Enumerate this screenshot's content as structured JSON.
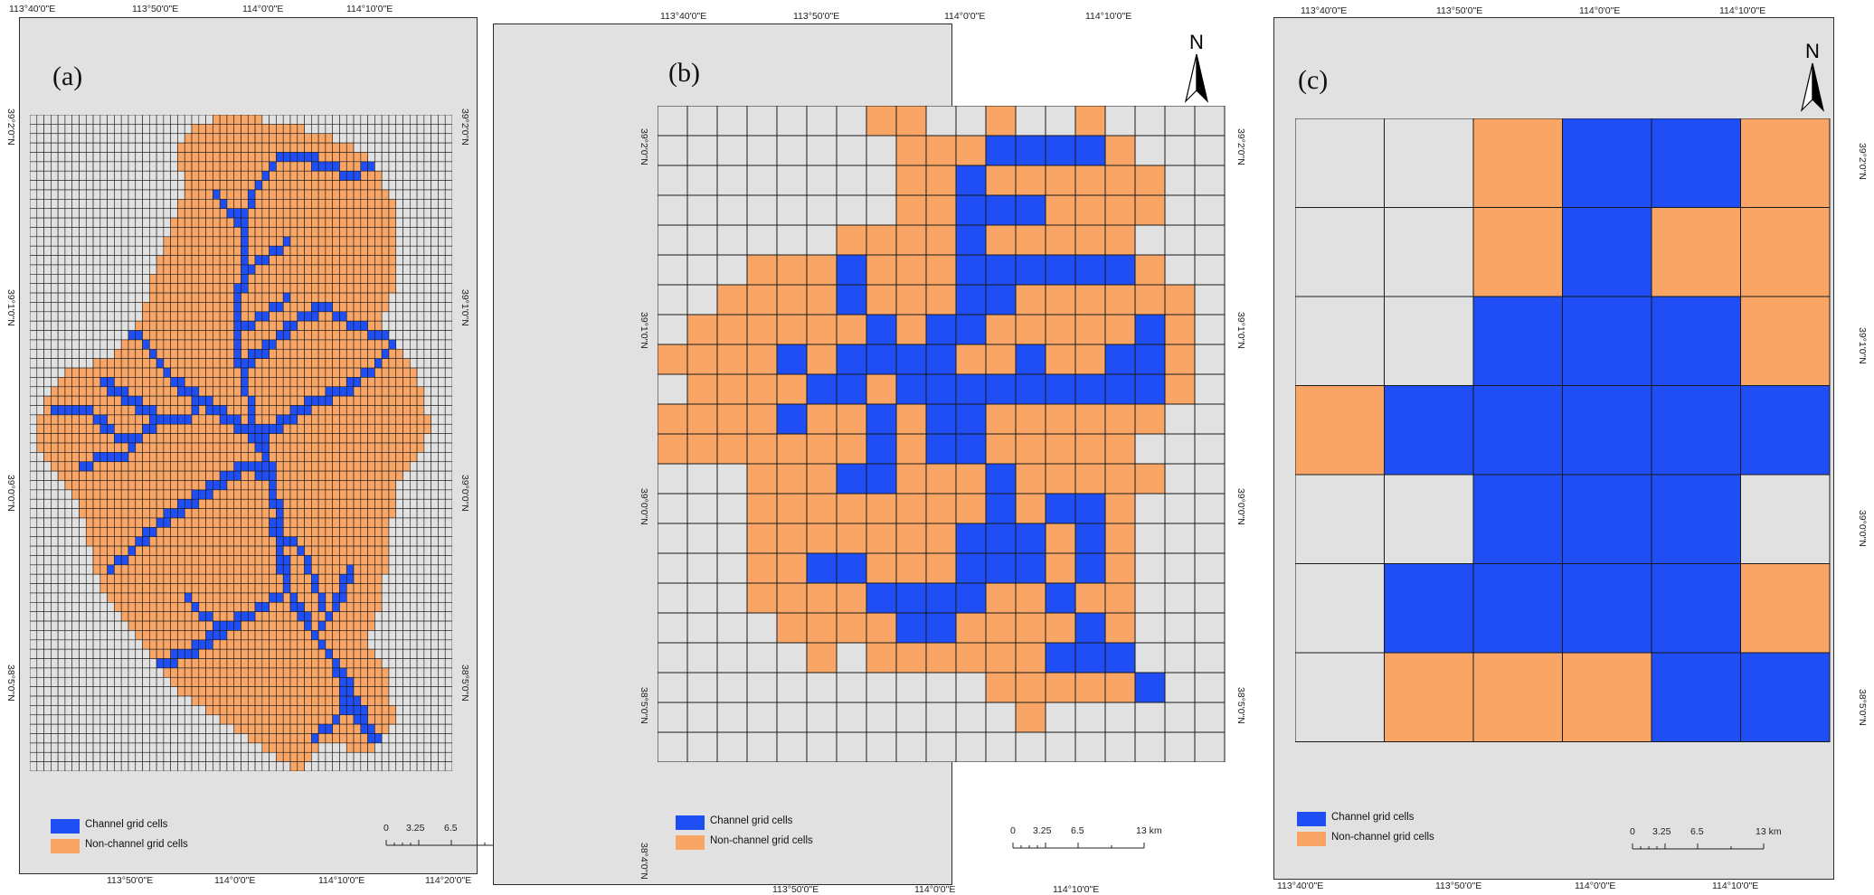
{
  "colors": {
    "channel": "#1f4ef5",
    "nonchannel": "#f8a566",
    "background": "#e1e1e1",
    "gridline": "#1a1a1a"
  },
  "north_label": "N",
  "legend": {
    "channel": "Channel grid cells",
    "nonchannel": "Non-channel grid cells"
  },
  "scale": {
    "labels": [
      "0",
      "3.25",
      "6.5",
      "13 km"
    ]
  },
  "panels": [
    {
      "label": "(a)",
      "top_ticks": [
        "113°40'0\"E",
        "113°50'0\"E",
        "114°0'0\"E",
        "114°10'0\"E"
      ],
      "bottom_ticks": [
        "113°50'0\"E",
        "114°0'0\"E",
        "114°10'0\"E",
        "114°20'0\"E"
      ],
      "left_ticks": [
        "39°2'0\"N",
        "39°1'0\"N",
        "39°0'0\"N",
        "38°5'0\"N"
      ],
      "right_ticks": [
        "39°2'0\"N",
        "39°1'0\"N",
        "39°0'0\"N",
        "38°5'0\"N"
      ],
      "grid": {
        "cols": 60,
        "rows": 70,
        "cell_km": 0.5
      }
    },
    {
      "label": "(b)",
      "top_ticks": [
        "113°40'0\"E",
        "113°50'0\"E",
        "114°0'0\"E",
        "114°10'0\"E"
      ],
      "bottom_ticks": [
        "113°50'0\"E",
        "114°0'0\"E",
        "114°10'0\"E"
      ],
      "left_ticks": [
        "39°2'0\"N",
        "39°1'0\"N",
        "39°0'0\"N",
        "38°5'0\"N",
        "38°4'0\"N"
      ],
      "right_ticks": [
        "39°2'0\"N",
        "39°1'0\"N",
        "39°0'0\"N",
        "38°5'0\"N"
      ],
      "grid": {
        "cols": 19,
        "rows": 22,
        "cell_km": 1.5
      }
    },
    {
      "label": "(c)",
      "top_ticks": [
        "113°40'0\"E",
        "113°50'0\"E",
        "114°0'0\"E",
        "114°10'0\"E"
      ],
      "bottom_ticks": [
        "113°40'0\"E",
        "113°50'0\"E",
        "114°0'0\"E",
        "114°10'0\"E"
      ],
      "left_ticks": [],
      "right_ticks": [
        "39°2'0\"N",
        "39°1'0\"N",
        "39°0'0\"N",
        "38°5'0\"N"
      ],
      "grid": {
        "cols": 6,
        "rows": 7,
        "cell_km": 5
      },
      "cells": [
        "GGOBBO",
        "GGOBOO",
        "GGBBBO",
        "OBBBBB",
        "GGBBBG",
        "GBBBBO",
        "GOOOBB"
      ]
    }
  ]
}
